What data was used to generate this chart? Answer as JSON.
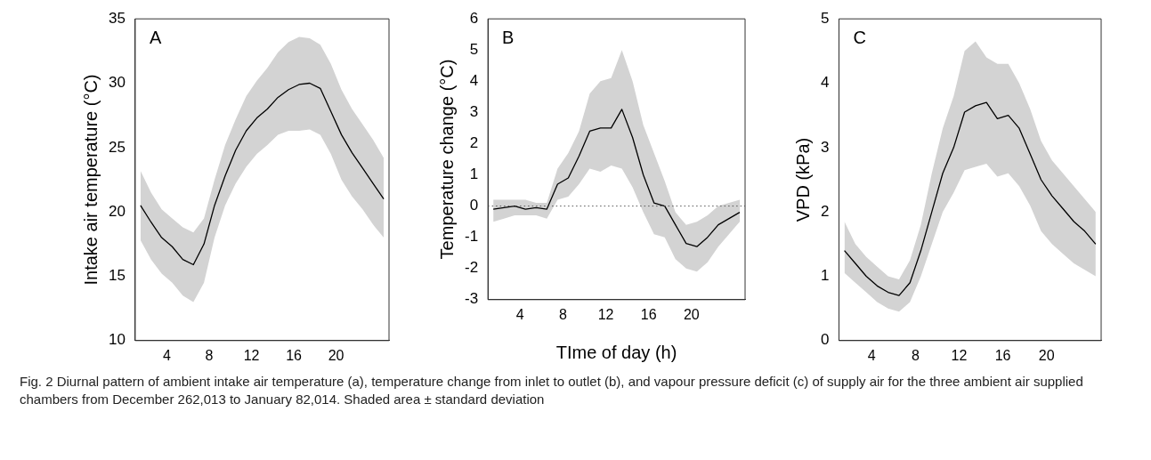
{
  "chart_data": [
    {
      "type": "line",
      "ylabel": "Intake air temperature (°C)",
      "annotations": [
        "A"
      ],
      "x": [
        1.5,
        2.5,
        3.5,
        4.5,
        5.5,
        6.5,
        7.5,
        8.5,
        9.5,
        10.5,
        11.5,
        12.5,
        13.5,
        14.5,
        15.5,
        16.5,
        17.5,
        18.5,
        19.5,
        20.5,
        21.5,
        22.5,
        23.5,
        24.5
      ],
      "xlim": [
        1,
        25
      ],
      "xticks": [
        4,
        8,
        12,
        16,
        20
      ],
      "ylim": [
        10,
        35
      ],
      "yticks": [
        10,
        15,
        20,
        25,
        30,
        35
      ],
      "grid": false,
      "legend": false,
      "series": [
        {
          "color": "#000000",
          "values": [
            20.5,
            19.2,
            18.0,
            17.3,
            16.3,
            15.9,
            17.5,
            20.5,
            22.8,
            24.8,
            26.3,
            27.3,
            28.0,
            28.9,
            29.5,
            29.9,
            30.0,
            29.6,
            27.8,
            26.0,
            24.6,
            23.4,
            22.2,
            21.0
          ],
          "lower": [
            17.8,
            16.3,
            15.2,
            14.5,
            13.5,
            13.0,
            14.5,
            18.0,
            20.5,
            22.2,
            23.5,
            24.5,
            25.2,
            26.0,
            26.3,
            26.3,
            26.4,
            26.0,
            24.5,
            22.5,
            21.2,
            20.2,
            19.0,
            18.0
          ],
          "upper": [
            23.2,
            21.5,
            20.2,
            19.5,
            18.8,
            18.4,
            19.5,
            22.5,
            25.2,
            27.2,
            29.0,
            30.2,
            31.2,
            32.4,
            33.2,
            33.6,
            33.5,
            33.0,
            31.5,
            29.5,
            28.0,
            26.8,
            25.6,
            24.2
          ]
        }
      ]
    },
    {
      "type": "line",
      "ylabel": "Temperature change (°C)",
      "xlabel": "TIme of day (h)",
      "annotations": [
        "B",
        "Fig. 2 Diurnal pattern of ambient intake air temperature (a), temperature change from inlet to outlet (b), and vapour pressure deficit (c) of supply air for the three ambient air supplied chambers from December 262,013 to January 82,014. Shaded area ± standard deviation"
      ],
      "x": [
        1.5,
        2.5,
        3.5,
        4.5,
        5.5,
        6.5,
        7.5,
        8.5,
        9.5,
        10.5,
        11.5,
        12.5,
        13.5,
        14.5,
        15.5,
        16.5,
        17.5,
        18.5,
        19.5,
        20.5,
        21.5,
        22.5,
        23.5,
        24.5
      ],
      "xlim": [
        1,
        25
      ],
      "xticks": [
        4,
        8,
        12,
        16,
        20
      ],
      "ylim": [
        -3,
        6
      ],
      "yticks": [
        -3,
        -2,
        -1,
        0,
        1,
        2,
        3,
        4,
        5,
        6
      ],
      "grid": false,
      "legend": false,
      "ref_lines": [
        {
          "axis": "y",
          "value": 0,
          "line_style": "dotted",
          "color": "#555555"
        }
      ],
      "series": [
        {
          "color": "#000000",
          "values": [
            -0.1,
            -0.05,
            0,
            -0.1,
            -0.05,
            -0.1,
            0.7,
            0.9,
            1.6,
            2.4,
            2.5,
            2.5,
            3.1,
            2.2,
            1.0,
            0.1,
            0,
            -0.6,
            -1.2,
            -1.3,
            -1.0,
            -0.6,
            -0.4,
            -0.2
          ],
          "lower": [
            -0.5,
            -0.4,
            -0.3,
            -0.3,
            -0.3,
            -0.4,
            0.2,
            0.3,
            0.7,
            1.2,
            1.1,
            1.3,
            1.2,
            0.6,
            -0.2,
            -0.9,
            -1.0,
            -1.7,
            -2.0,
            -2.1,
            -1.8,
            -1.3,
            -0.9,
            -0.5
          ],
          "upper": [
            0.2,
            0.2,
            0.2,
            0.2,
            0.1,
            0.1,
            1.2,
            1.7,
            2.4,
            3.6,
            4.0,
            4.1,
            5.0,
            4.0,
            2.6,
            1.7,
            0.8,
            -0.2,
            -0.6,
            -0.5,
            -0.3,
            0,
            0.1,
            0.2
          ]
        }
      ]
    },
    {
      "type": "line",
      "ylabel": "VPD (kPa)",
      "annotations": [
        "C"
      ],
      "x": [
        1.5,
        2.5,
        3.5,
        4.5,
        5.5,
        6.5,
        7.5,
        8.5,
        9.5,
        10.5,
        11.5,
        12.5,
        13.5,
        14.5,
        15.5,
        16.5,
        17.5,
        18.5,
        19.5,
        20.5,
        21.5,
        22.5,
        23.5,
        24.5
      ],
      "xlim": [
        1,
        25
      ],
      "xticks": [
        4,
        8,
        12,
        16,
        20
      ],
      "ylim": [
        0,
        5
      ],
      "yticks": [
        0,
        1,
        2,
        3,
        4,
        5
      ],
      "grid": false,
      "legend": false,
      "series": [
        {
          "color": "#000000",
          "values": [
            1.4,
            1.2,
            1.0,
            0.85,
            0.75,
            0.7,
            0.9,
            1.4,
            2.0,
            2.6,
            3.0,
            3.55,
            3.65,
            3.7,
            3.45,
            3.5,
            3.3,
            2.9,
            2.5,
            2.25,
            2.05,
            1.85,
            1.7,
            1.5
          ],
          "lower": [
            1.05,
            0.9,
            0.75,
            0.6,
            0.5,
            0.45,
            0.6,
            1.0,
            1.5,
            2.0,
            2.3,
            2.65,
            2.7,
            2.75,
            2.55,
            2.6,
            2.4,
            2.1,
            1.7,
            1.5,
            1.35,
            1.2,
            1.1,
            1.0
          ],
          "upper": [
            1.85,
            1.5,
            1.3,
            1.15,
            1.0,
            0.95,
            1.25,
            1.8,
            2.6,
            3.3,
            3.8,
            4.5,
            4.65,
            4.4,
            4.3,
            4.3,
            4.0,
            3.6,
            3.1,
            2.8,
            2.6,
            2.4,
            2.2,
            2.0
          ]
        }
      ]
    }
  ]
}
